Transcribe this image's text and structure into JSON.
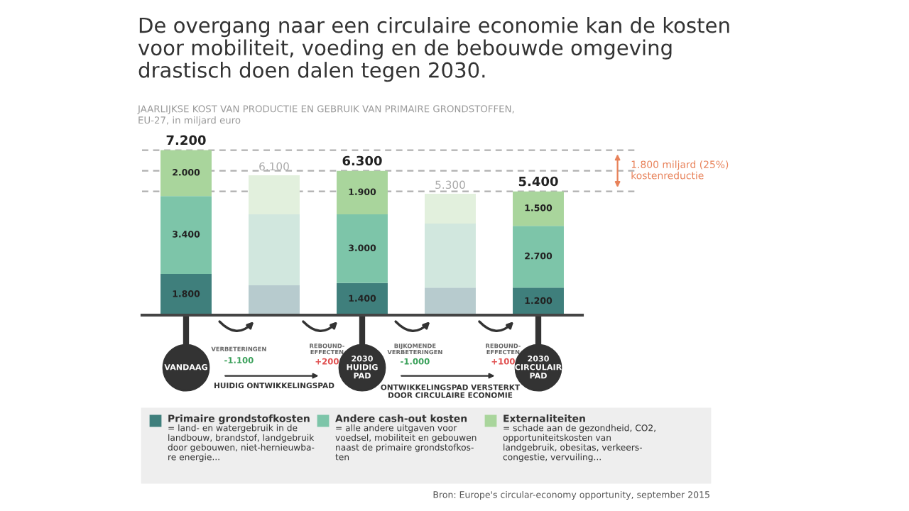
{
  "chart_data": {
    "type": "bar",
    "stacked": true,
    "title": "De overgang naar een circulaire economie kan de kosten\nvoor mobiliteit, voeding en de bebouwde omgeving\ndrastisch doen dalen tegen 2030.",
    "subtitle": "JAARLIJKSE KOST VAN PRODUCTIE EN GEBRUIK VAN PRIMAIRE GRONDSTOFFEN,\nEU-27, in miljard euro",
    "categories": [
      "VANDAAG",
      null,
      "2030\nHUIDIG\nPAD",
      null,
      "2030\nCIRCULAIR\nPAD"
    ],
    "series": [
      {
        "name": "Primaire grondstofkosten",
        "color": "#3f7f7c",
        "colors": [
          "#3f7f7c",
          "#b7cbce",
          "#3f7f7c",
          "#b7cbce",
          "#3f7f7c"
        ],
        "values": [
          1800,
          1300,
          1400,
          1200,
          1200
        ],
        "value_labels": [
          "1.800",
          null,
          "1.400",
          null,
          "1.200"
        ]
      },
      {
        "name": "Andere cash-out kosten",
        "color": "#7dc5a9",
        "colors": [
          "#7dc5a9",
          "#d1e7de",
          "#7dc5a9",
          "#d1e7de",
          "#7dc5a9"
        ],
        "values": [
          3400,
          3100,
          3000,
          2800,
          2700
        ],
        "value_labels": [
          "3.400",
          null,
          "3.000",
          null,
          "2.700"
        ]
      },
      {
        "name": "Externaliteiten",
        "color": "#a9d59c",
        "colors": [
          "#a9d59c",
          "#e2f0dd",
          "#a9d59c",
          "#e2f0dd",
          "#a9d59c"
        ],
        "values": [
          2000,
          1700,
          1900,
          1300,
          1500
        ],
        "value_labels": [
          "2.000",
          null,
          "1.900",
          null,
          "1.500"
        ]
      }
    ],
    "totals": [
      "7.200",
      "6.100",
      "6.300",
      "5.300",
      "5.400"
    ],
    "legend": "bottom",
    "ref_lines": [
      {
        "axis": "y",
        "value": 7200,
        "color": "#b0b0b0",
        "line_style": "dashed"
      },
      {
        "axis": "y",
        "value": 6300,
        "color": "#b0b0b0",
        "line_style": "dashed"
      },
      {
        "axis": "y",
        "value": 5400,
        "color": "#b0b0b0",
        "line_style": "dashed"
      }
    ],
    "annotations": [
      "VERBETERINGEN",
      "-1.100",
      "REBOUND-\nEFFECTEN",
      "+200",
      "BIJKOMENDE\nVERBETERINGEN",
      "-1.000",
      "REBOUND-\nEFFECTEN",
      "+100",
      "HUIDIG ONTWIKKELINGSPAD",
      "ONTWIKKELINGSPAD VERSTERKT\nDOOR CIRCULAIRE ECONOMIE",
      "1.800 miljard (25%)\nkostenreductie",
      "= land- en watergebruik in de\nlandbouw, brandstof, landgebruik\ndoor gebouwen, niet-hernieuwba-\nre energie...",
      "= alle andere uitgaven voor\nvoedsel, mobiliteit en gebouwen\nnaast de primaire grondstofkos-\nten",
      "= schade aan de gezondheid, CO2,\nopportuniteitskosten van\nlandgebruik, obesitas, verkeers-\ncongestie, vervuiling...",
      "Bron: Europe's circular-economy opportunity, september 2015"
    ]
  }
}
